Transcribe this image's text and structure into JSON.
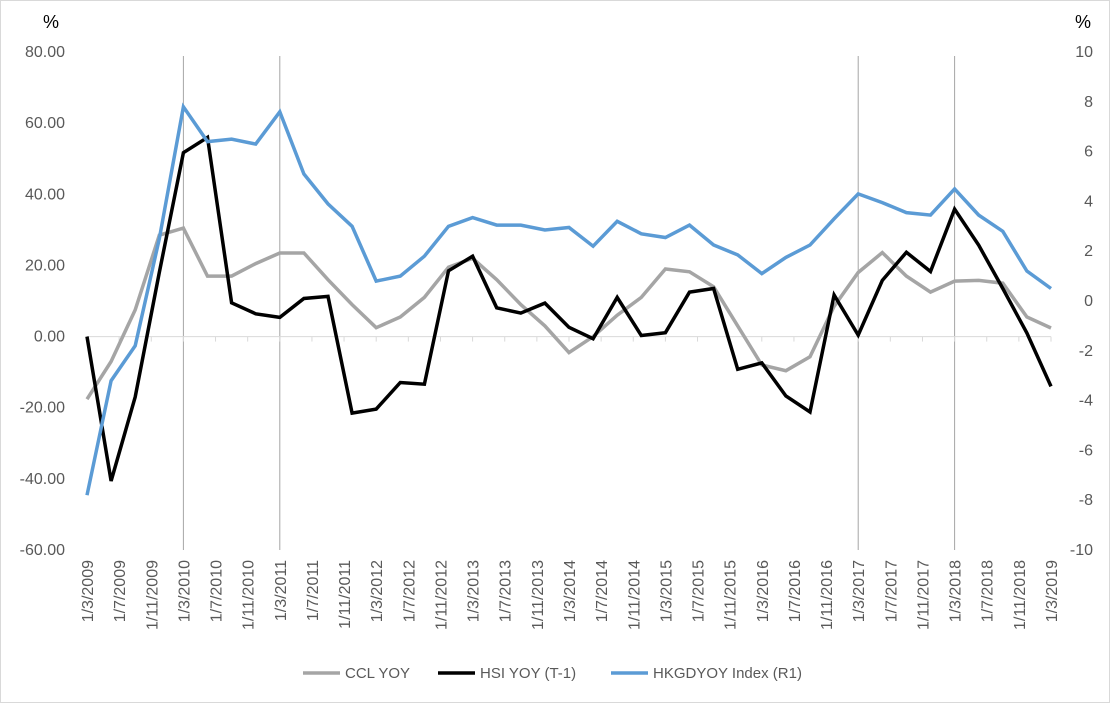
{
  "chart_data": {
    "type": "line",
    "title": "",
    "y_left_label": "%",
    "y_right_label": "%",
    "ylim_left": [
      -60,
      80
    ],
    "ylim_right": [
      -10,
      10
    ],
    "y_left_ticks": [
      "80.00",
      "60.00",
      "40.00",
      "20.00",
      "0.00",
      "-20.00",
      "-40.00",
      "-60.00"
    ],
    "y_right_ticks": [
      "10",
      "8",
      "6",
      "4",
      "2",
      "0",
      "-2",
      "-4",
      "-6",
      "-8",
      "-10"
    ],
    "x_labels": [
      "1/3/2009",
      "1/7/2009",
      "1/11/2009",
      "1/3/2010",
      "1/7/2010",
      "1/11/2010",
      "1/3/2011",
      "1/7/2011",
      "1/11/2011",
      "1/3/2012",
      "1/7/2012",
      "1/11/2012",
      "1/3/2013",
      "1/7/2013",
      "1/11/2013",
      "1/3/2014",
      "1/7/2014",
      "1/11/2014",
      "1/3/2015",
      "1/7/2015",
      "1/11/2015",
      "1/3/2016",
      "1/7/2016",
      "1/11/2016",
      "1/3/2017",
      "1/7/2017",
      "1/11/2017",
      "1/3/2018",
      "1/7/2018",
      "1/11/2018",
      "1/3/2019"
    ],
    "vertical_marker_dates": [
      "1/3/2010",
      "1/3/2011",
      "1/3/2017",
      "1/3/2018"
    ],
    "grid": false,
    "legend_position": "bottom",
    "series": [
      {
        "name": "CCL YOY",
        "axis": "left",
        "color": "#a5a5a5",
        "values": [
          -17.6,
          -7,
          7.5,
          28.5,
          30.5,
          17,
          17,
          20.5,
          23.5,
          23.5,
          16,
          9,
          2.5,
          5.5,
          11,
          19.5,
          22,
          16,
          9,
          3,
          -4.5,
          0,
          6,
          11,
          19,
          18.2,
          14,
          3,
          -8,
          -9.6,
          -5.7,
          8.5,
          18,
          23.6,
          17,
          12.5,
          15.6,
          15.8,
          15,
          5.5,
          2.4
        ]
      },
      {
        "name": "HSI YOY (T-1)",
        "axis": "left",
        "color": "#000000",
        "values": [
          0,
          -40.6,
          -17,
          18,
          51.7,
          56,
          9.5,
          6.4,
          5.4,
          10.7,
          11.3,
          -21.5,
          -20.4,
          -12.9,
          -13.4,
          18.5,
          22.6,
          8.1,
          6.6,
          9.4,
          2.6,
          -0.6,
          11,
          0.3,
          1.1,
          12.5,
          13.5,
          -9.2,
          -7.4,
          -16.7,
          -21.2,
          11.7,
          0.4,
          15.8,
          23.7,
          18.3,
          35.8,
          25.7,
          13.5,
          1,
          -14
        ]
      },
      {
        "name": "HKGDYOY Index  (R1)",
        "axis": "right",
        "color": "#5b9bd5",
        "values": [
          -7.8,
          -3.2,
          -1.8,
          2.5,
          7.8,
          6.4,
          6.5,
          6.3,
          7.6,
          5.1,
          3.9,
          3,
          0.8,
          1,
          1.8,
          3,
          3.35,
          3.05,
          3.05,
          2.85,
          2.95,
          2.2,
          3.2,
          2.7,
          2.55,
          3.05,
          2.25,
          1.85,
          1.1,
          1.75,
          2.25,
          3.3,
          4.3,
          3.95,
          3.55,
          3.45,
          4.5,
          3.45,
          2.8,
          1.2,
          0.5
        ]
      }
    ]
  }
}
